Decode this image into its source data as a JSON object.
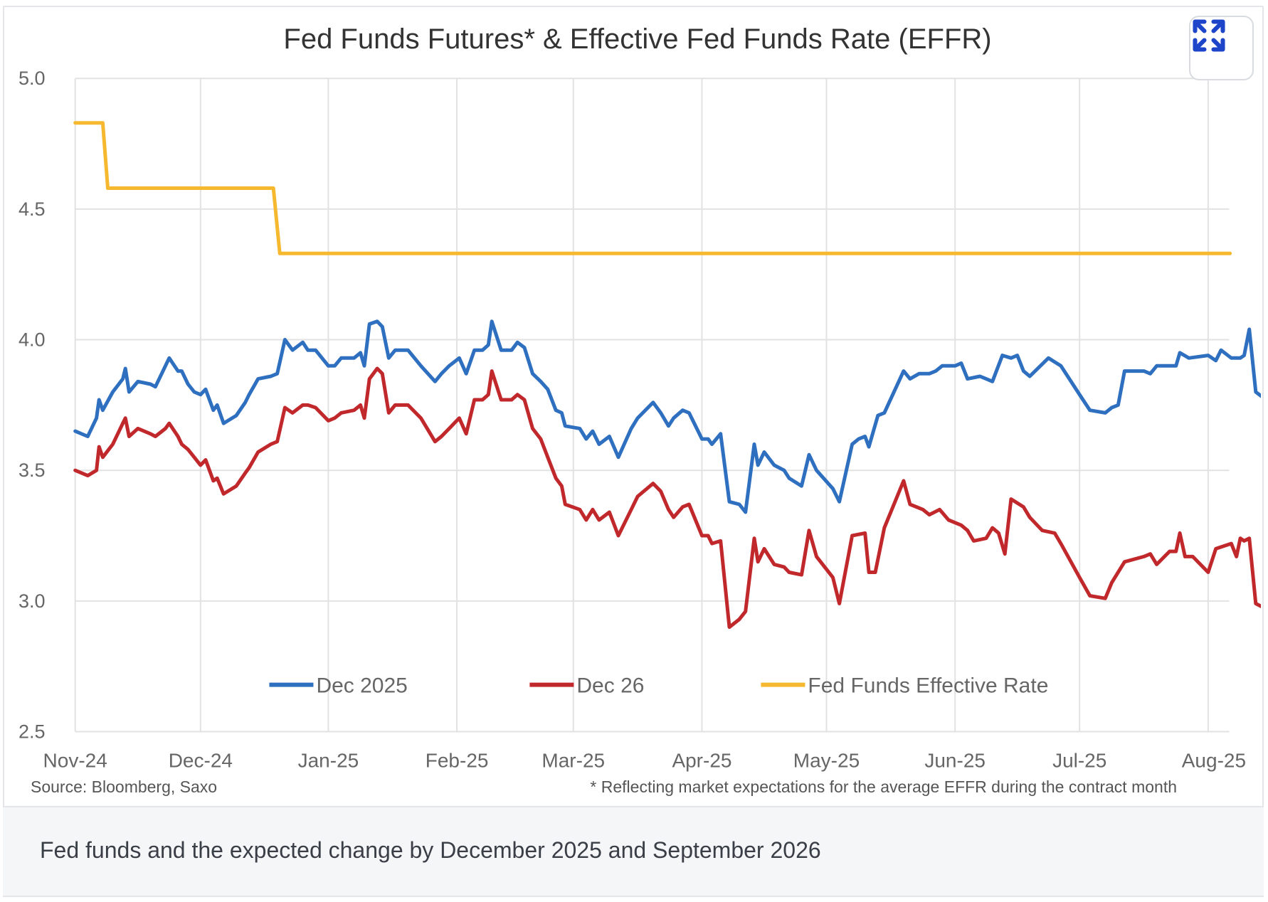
{
  "figure": {
    "expand_button_icon": "expand-arrows-icon",
    "caption": "Fed funds and the expected change by December 2025 and September 2026"
  },
  "colors": {
    "dec2025": "#2f6fbf",
    "dec26": "#c0282b",
    "effr": "#f5b82e",
    "grid": "#e2e2e2",
    "text": "#595959",
    "expand_icon": "#1c45c9"
  },
  "chart_data": {
    "type": "line",
    "title": "Fed Funds Futures* & Effective Fed Funds Rate (EFFR)",
    "xlabel": "",
    "ylabel": "",
    "ylim": [
      2.5,
      5.0
    ],
    "yticks": [
      "5.0",
      "4.5",
      "4.0",
      "3.5",
      "3.0",
      "2.5"
    ],
    "ytick_values": [
      5.0,
      4.5,
      4.0,
      3.5,
      3.0,
      2.5
    ],
    "xticks": [
      "Nov-24",
      "Dec-24",
      "Jan-25",
      "Feb-25",
      "Mar-25",
      "Apr-25",
      "May-25",
      "Jun-25",
      "Jul-25",
      "Aug-25"
    ],
    "x_unit": "months since Nov-24 (0 = Nov-24, 9 = Aug-25)",
    "xlim": [
      0,
      9.17
    ],
    "grid": true,
    "legend_position": "bottom-center",
    "source_note": "Source: Bloomberg, Saxo",
    "footnote": "* Reflecting market expectations for the average EFFR during the contract month",
    "series": [
      {
        "name": "Dec 2025",
        "color_key": "dec2025",
        "points": [
          [
            0,
            3.65
          ],
          [
            0.1,
            3.63
          ],
          [
            0.17,
            3.7
          ],
          [
            0.19,
            3.77
          ],
          [
            0.22,
            3.73
          ],
          [
            0.3,
            3.8
          ],
          [
            0.38,
            3.85
          ],
          [
            0.4,
            3.89
          ],
          [
            0.43,
            3.8
          ],
          [
            0.5,
            3.84
          ],
          [
            0.6,
            3.83
          ],
          [
            0.64,
            3.82
          ],
          [
            0.72,
            3.9
          ],
          [
            0.75,
            3.93
          ],
          [
            0.82,
            3.88
          ],
          [
            0.85,
            3.88
          ],
          [
            0.9,
            3.83
          ],
          [
            0.95,
            3.8
          ],
          [
            1.0,
            3.79
          ],
          [
            1.04,
            3.81
          ],
          [
            1.1,
            3.73
          ],
          [
            1.13,
            3.75
          ],
          [
            1.18,
            3.68
          ],
          [
            1.28,
            3.71
          ],
          [
            1.35,
            3.76
          ],
          [
            1.38,
            3.79
          ],
          [
            1.45,
            3.85
          ],
          [
            1.55,
            3.86
          ],
          [
            1.6,
            3.87
          ],
          [
            1.66,
            4.0
          ],
          [
            1.72,
            3.96
          ],
          [
            1.8,
            3.99
          ],
          [
            1.84,
            3.96
          ],
          [
            1.9,
            3.96
          ],
          [
            2.0,
            3.9
          ],
          [
            2.05,
            3.9
          ],
          [
            2.1,
            3.93
          ],
          [
            2.2,
            3.93
          ],
          [
            2.25,
            3.95
          ],
          [
            2.28,
            3.9
          ],
          [
            2.32,
            4.06
          ],
          [
            2.38,
            4.07
          ],
          [
            2.42,
            4.05
          ],
          [
            2.47,
            3.93
          ],
          [
            2.52,
            3.96
          ],
          [
            2.62,
            3.96
          ],
          [
            2.72,
            3.9
          ],
          [
            2.83,
            3.84
          ],
          [
            2.88,
            3.87
          ],
          [
            2.94,
            3.9
          ],
          [
            3.02,
            3.93
          ],
          [
            3.08,
            3.87
          ],
          [
            3.15,
            3.96
          ],
          [
            3.22,
            3.96
          ],
          [
            3.27,
            3.98
          ],
          [
            3.3,
            4.07
          ],
          [
            3.38,
            3.96
          ],
          [
            3.47,
            3.96
          ],
          [
            3.52,
            3.99
          ],
          [
            3.58,
            3.97
          ],
          [
            3.65,
            3.87
          ],
          [
            3.72,
            3.84
          ],
          [
            3.78,
            3.81
          ],
          [
            3.85,
            3.73
          ],
          [
            3.9,
            3.72
          ],
          [
            3.93,
            3.67
          ],
          [
            4.05,
            3.66
          ],
          [
            4.1,
            3.62
          ],
          [
            4.15,
            3.65
          ],
          [
            4.2,
            3.6
          ],
          [
            4.28,
            3.63
          ],
          [
            4.35,
            3.55
          ],
          [
            4.45,
            3.66
          ],
          [
            4.5,
            3.7
          ],
          [
            4.62,
            3.76
          ],
          [
            4.68,
            3.72
          ],
          [
            4.74,
            3.67
          ],
          [
            4.78,
            3.7
          ],
          [
            4.85,
            3.73
          ],
          [
            4.9,
            3.72
          ],
          [
            5.0,
            3.62
          ],
          [
            5.05,
            3.62
          ],
          [
            5.08,
            3.6
          ],
          [
            5.15,
            3.64
          ],
          [
            5.22,
            3.38
          ],
          [
            5.3,
            3.37
          ],
          [
            5.35,
            3.34
          ],
          [
            5.42,
            3.6
          ],
          [
            5.45,
            3.52
          ],
          [
            5.5,
            3.57
          ],
          [
            5.58,
            3.52
          ],
          [
            5.66,
            3.5
          ],
          [
            5.7,
            3.47
          ],
          [
            5.8,
            3.44
          ],
          [
            5.86,
            3.56
          ],
          [
            5.92,
            3.5
          ],
          [
            6.05,
            3.43
          ],
          [
            6.1,
            3.38
          ],
          [
            6.2,
            3.6
          ],
          [
            6.25,
            3.62
          ],
          [
            6.3,
            3.63
          ],
          [
            6.33,
            3.59
          ],
          [
            6.4,
            3.71
          ],
          [
            6.45,
            3.72
          ],
          [
            6.6,
            3.88
          ],
          [
            6.65,
            3.85
          ],
          [
            6.72,
            3.87
          ],
          [
            6.8,
            3.87
          ],
          [
            6.85,
            3.88
          ],
          [
            6.9,
            3.9
          ],
          [
            7.0,
            3.9
          ],
          [
            7.05,
            3.91
          ],
          [
            7.1,
            3.85
          ],
          [
            7.2,
            3.86
          ],
          [
            7.25,
            3.85
          ],
          [
            7.3,
            3.84
          ],
          [
            7.38,
            3.94
          ],
          [
            7.45,
            3.93
          ],
          [
            7.5,
            3.94
          ],
          [
            7.55,
            3.88
          ],
          [
            7.6,
            3.86
          ],
          [
            7.75,
            3.93
          ],
          [
            7.85,
            3.9
          ],
          [
            8.0,
            3.79
          ],
          [
            8.08,
            3.73
          ],
          [
            8.2,
            3.72
          ],
          [
            8.25,
            3.74
          ],
          [
            8.3,
            3.75
          ],
          [
            8.35,
            3.88
          ],
          [
            8.5,
            3.88
          ],
          [
            8.55,
            3.87
          ],
          [
            8.6,
            3.9
          ],
          [
            8.7,
            3.9
          ],
          [
            8.75,
            3.9
          ],
          [
            8.78,
            3.95
          ],
          [
            8.85,
            3.93
          ],
          [
            9.0,
            3.94
          ],
          [
            9.06,
            3.92
          ],
          [
            9.1,
            3.96
          ],
          [
            9.18,
            3.93
          ],
          [
            9.25,
            3.93
          ],
          [
            9.28,
            3.94
          ]
        ]
      },
      {
        "name": "Dec 26",
        "color_key": "dec26",
        "points": [
          [
            0,
            3.5
          ],
          [
            0.1,
            3.48
          ],
          [
            0.17,
            3.5
          ],
          [
            0.19,
            3.59
          ],
          [
            0.22,
            3.55
          ],
          [
            0.3,
            3.6
          ],
          [
            0.38,
            3.68
          ],
          [
            0.4,
            3.7
          ],
          [
            0.43,
            3.63
          ],
          [
            0.5,
            3.66
          ],
          [
            0.6,
            3.64
          ],
          [
            0.64,
            3.63
          ],
          [
            0.72,
            3.66
          ],
          [
            0.75,
            3.68
          ],
          [
            0.82,
            3.63
          ],
          [
            0.85,
            3.6
          ],
          [
            0.9,
            3.58
          ],
          [
            0.95,
            3.55
          ],
          [
            1.0,
            3.52
          ],
          [
            1.04,
            3.54
          ],
          [
            1.1,
            3.46
          ],
          [
            1.13,
            3.47
          ],
          [
            1.18,
            3.41
          ],
          [
            1.28,
            3.44
          ],
          [
            1.35,
            3.49
          ],
          [
            1.38,
            3.51
          ],
          [
            1.45,
            3.57
          ],
          [
            1.55,
            3.6
          ],
          [
            1.6,
            3.61
          ],
          [
            1.66,
            3.74
          ],
          [
            1.72,
            3.72
          ],
          [
            1.8,
            3.75
          ],
          [
            1.84,
            3.75
          ],
          [
            1.9,
            3.74
          ],
          [
            2.0,
            3.69
          ],
          [
            2.05,
            3.7
          ],
          [
            2.1,
            3.72
          ],
          [
            2.2,
            3.73
          ],
          [
            2.25,
            3.75
          ],
          [
            2.28,
            3.7
          ],
          [
            2.32,
            3.85
          ],
          [
            2.38,
            3.89
          ],
          [
            2.42,
            3.87
          ],
          [
            2.47,
            3.72
          ],
          [
            2.52,
            3.75
          ],
          [
            2.62,
            3.75
          ],
          [
            2.72,
            3.7
          ],
          [
            2.83,
            3.61
          ],
          [
            2.88,
            3.63
          ],
          [
            2.94,
            3.66
          ],
          [
            3.02,
            3.7
          ],
          [
            3.08,
            3.64
          ],
          [
            3.15,
            3.77
          ],
          [
            3.22,
            3.77
          ],
          [
            3.27,
            3.79
          ],
          [
            3.3,
            3.88
          ],
          [
            3.38,
            3.77
          ],
          [
            3.47,
            3.77
          ],
          [
            3.52,
            3.79
          ],
          [
            3.58,
            3.77
          ],
          [
            3.65,
            3.66
          ],
          [
            3.72,
            3.62
          ],
          [
            3.78,
            3.55
          ],
          [
            3.85,
            3.47
          ],
          [
            3.9,
            3.44
          ],
          [
            3.93,
            3.37
          ],
          [
            4.05,
            3.35
          ],
          [
            4.1,
            3.31
          ],
          [
            4.15,
            3.35
          ],
          [
            4.2,
            3.31
          ],
          [
            4.28,
            3.34
          ],
          [
            4.35,
            3.25
          ],
          [
            4.45,
            3.35
          ],
          [
            4.5,
            3.4
          ],
          [
            4.62,
            3.45
          ],
          [
            4.68,
            3.42
          ],
          [
            4.74,
            3.35
          ],
          [
            4.78,
            3.32
          ],
          [
            4.85,
            3.36
          ],
          [
            4.9,
            3.37
          ],
          [
            5.0,
            3.25
          ],
          [
            5.05,
            3.25
          ],
          [
            5.08,
            3.22
          ],
          [
            5.15,
            3.23
          ],
          [
            5.22,
            2.9
          ],
          [
            5.3,
            2.93
          ],
          [
            5.35,
            2.96
          ],
          [
            5.42,
            3.24
          ],
          [
            5.45,
            3.15
          ],
          [
            5.5,
            3.2
          ],
          [
            5.58,
            3.14
          ],
          [
            5.66,
            3.13
          ],
          [
            5.7,
            3.11
          ],
          [
            5.8,
            3.1
          ],
          [
            5.86,
            3.27
          ],
          [
            5.92,
            3.17
          ],
          [
            6.05,
            3.09
          ],
          [
            6.1,
            2.99
          ],
          [
            6.2,
            3.25
          ],
          [
            6.3,
            3.26
          ],
          [
            6.33,
            3.11
          ],
          [
            6.38,
            3.11
          ],
          [
            6.45,
            3.28
          ],
          [
            6.6,
            3.46
          ],
          [
            6.65,
            3.37
          ],
          [
            6.75,
            3.35
          ],
          [
            6.8,
            3.33
          ],
          [
            6.88,
            3.35
          ],
          [
            6.95,
            3.31
          ],
          [
            7.05,
            3.29
          ],
          [
            7.1,
            3.27
          ],
          [
            7.15,
            3.23
          ],
          [
            7.25,
            3.24
          ],
          [
            7.3,
            3.28
          ],
          [
            7.35,
            3.26
          ],
          [
            7.4,
            3.18
          ],
          [
            7.45,
            3.39
          ],
          [
            7.55,
            3.36
          ],
          [
            7.6,
            3.32
          ],
          [
            7.7,
            3.27
          ],
          [
            7.8,
            3.26
          ],
          [
            7.85,
            3.22
          ],
          [
            8.0,
            3.09
          ],
          [
            8.08,
            3.02
          ],
          [
            8.2,
            3.01
          ],
          [
            8.25,
            3.07
          ],
          [
            8.35,
            3.15
          ],
          [
            8.5,
            3.17
          ],
          [
            8.55,
            3.18
          ],
          [
            8.6,
            3.14
          ],
          [
            8.7,
            3.19
          ],
          [
            8.75,
            3.19
          ],
          [
            8.78,
            3.26
          ],
          [
            8.82,
            3.17
          ],
          [
            8.88,
            3.17
          ],
          [
            9.0,
            3.11
          ],
          [
            9.06,
            3.2
          ],
          [
            9.18,
            3.22
          ],
          [
            9.22,
            3.17
          ],
          [
            9.25,
            3.24
          ],
          [
            9.28,
            3.23
          ]
        ]
      },
      {
        "name": "Fed Funds Effective Rate",
        "color_key": "effr",
        "points": [
          [
            0,
            4.83
          ],
          [
            0.22,
            4.83
          ],
          [
            0.26,
            4.58
          ],
          [
            1.57,
            4.58
          ],
          [
            1.62,
            4.33
          ],
          [
            9.17,
            4.33
          ]
        ]
      }
    ],
    "series_tail": {
      "Dec 2025": [
        [
          9.32,
          4.04
        ],
        [
          9.37,
          3.8
        ],
        [
          9.45,
          3.77
        ],
        [
          9.5,
          3.78
        ]
      ],
      "Dec 26": [
        [
          9.32,
          3.24
        ],
        [
          9.37,
          2.99
        ],
        [
          9.45,
          2.97
        ],
        [
          9.5,
          2.97
        ]
      ]
    }
  }
}
